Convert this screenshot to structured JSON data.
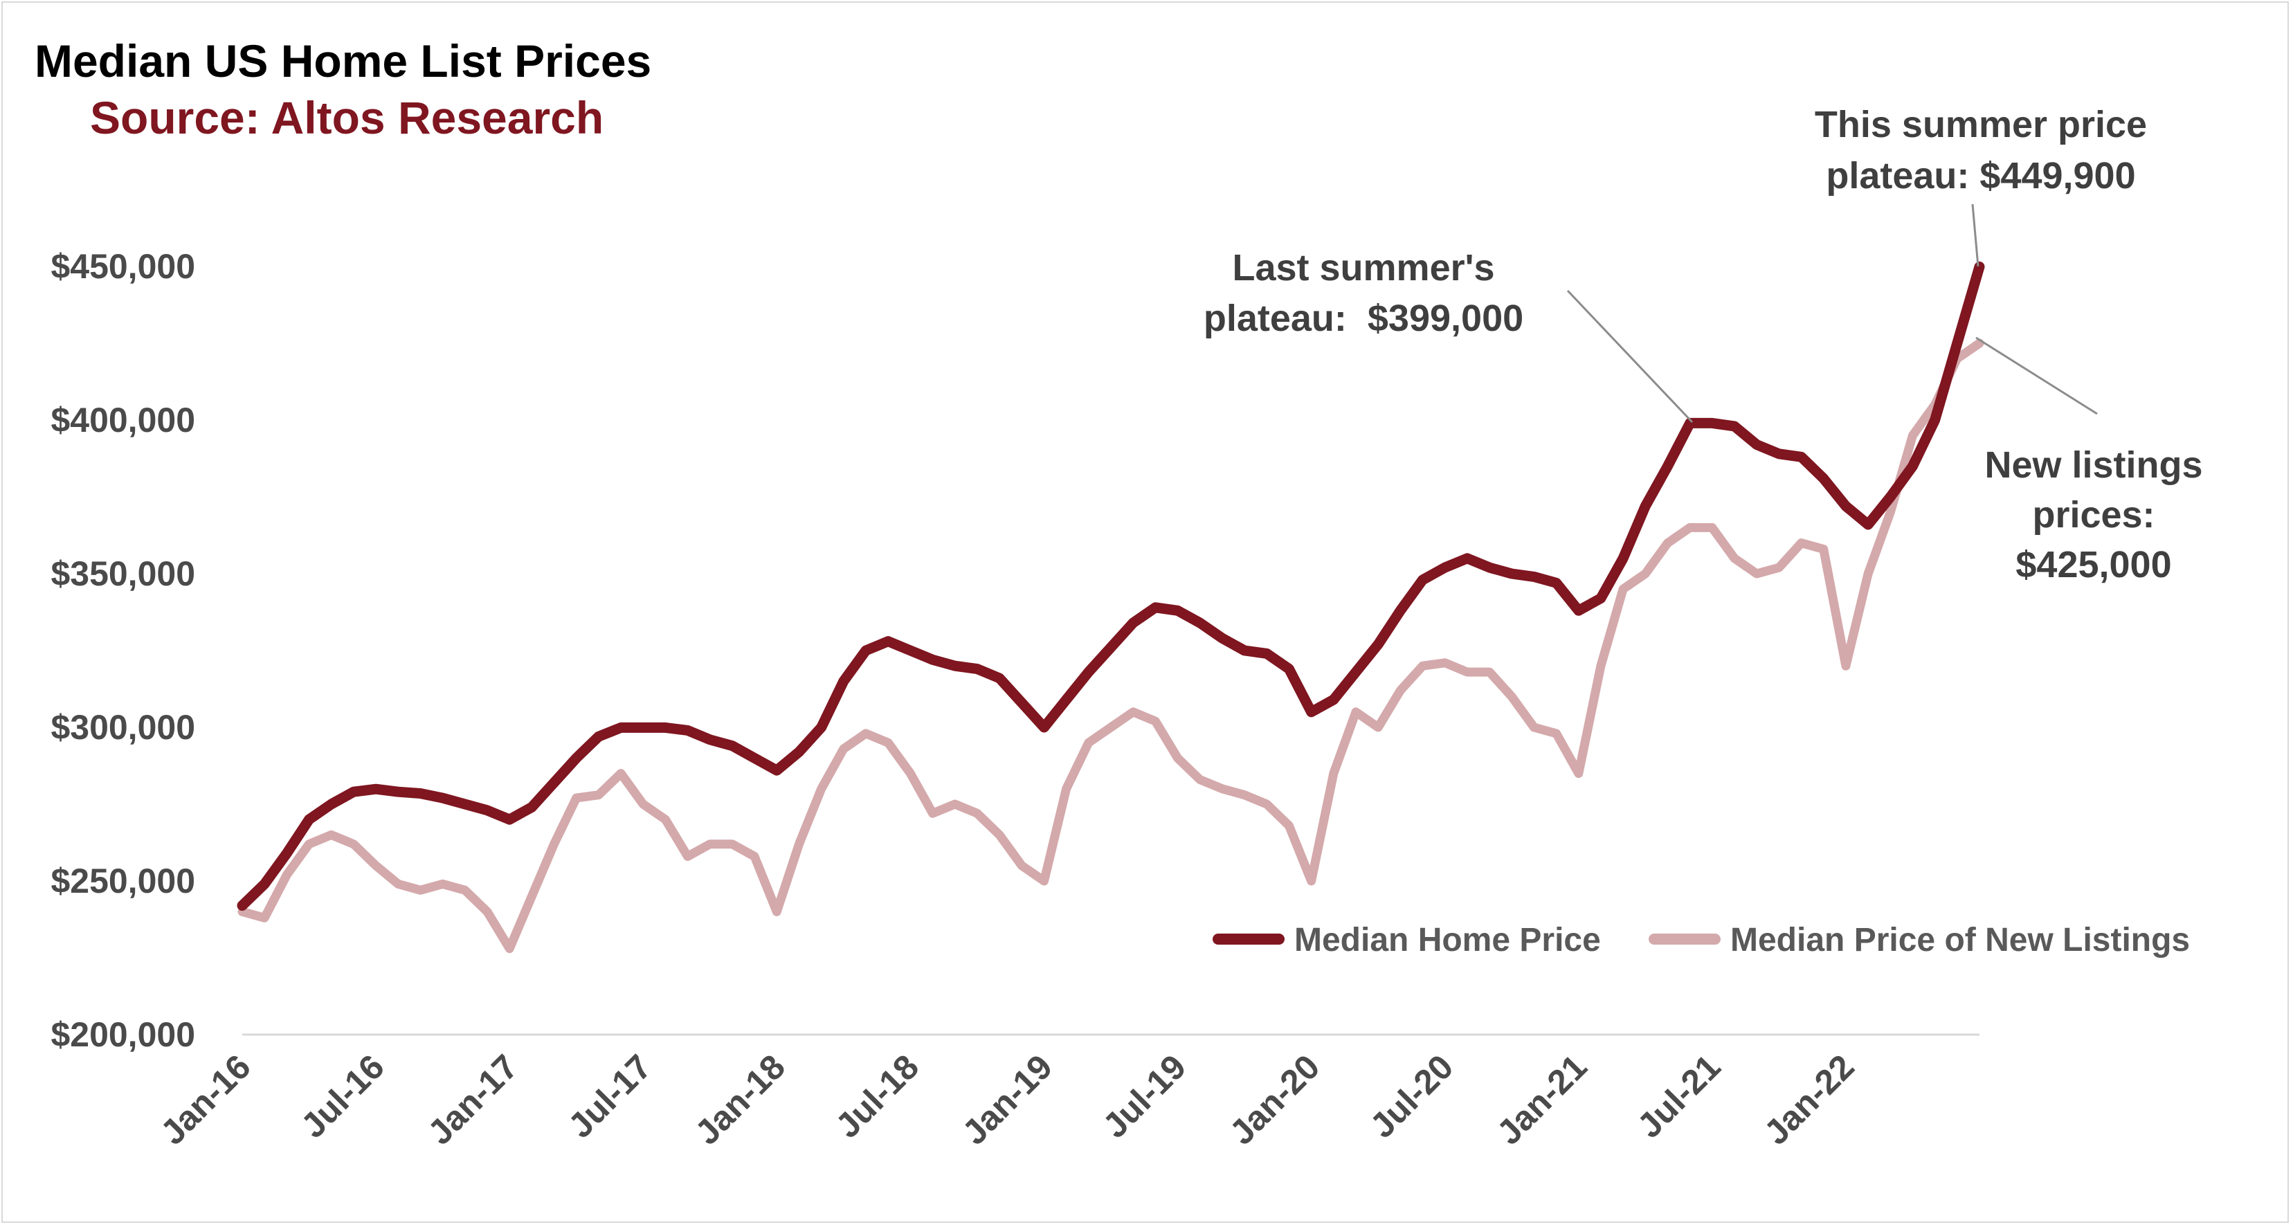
{
  "title": "Median US Home List Prices",
  "subtitle": "Source: Altos Research",
  "colors": {
    "title": "#000000",
    "subtitle": "#7f1620",
    "median_home_price": "#7f1620",
    "new_listings": "#d4a9ab",
    "axis_text": "#4a4a4a",
    "annotation_text": "#3f3f3f",
    "leader_line": "#8c8c8c"
  },
  "annotations": {
    "this_summer": [
      "This summer price",
      "plateau: $449,900"
    ],
    "last_summer": [
      "Last summer's",
      "plateau:  $399,000"
    ],
    "new_listings": [
      "New listings",
      "prices:",
      "$425,000"
    ]
  },
  "chart_data": {
    "type": "line",
    "title": "Median US Home List Prices",
    "subtitle": "Source: Altos Research",
    "xlabel": "",
    "ylabel": "",
    "x_ticks": [
      "Jan-16",
      "Jul-16",
      "Jan-17",
      "Jul-17",
      "Jan-18",
      "Jul-18",
      "Jan-19",
      "Jul-19",
      "Jan-20",
      "Jul-20",
      "Jan-21",
      "Jul-21",
      "Jan-22"
    ],
    "y_ticks": [
      "$200,000",
      "$250,000",
      "$300,000",
      "$350,000",
      "$400,000",
      "$450,000"
    ],
    "ylim": [
      200000,
      450000
    ],
    "xlim": [
      "2016-01",
      "2022-07"
    ],
    "grid": false,
    "legend_position": "bottom-right",
    "series": [
      {
        "name": "Median Home Price",
        "color": "#7f1620",
        "x": [
          "2016-01",
          "2016-02",
          "2016-03",
          "2016-04",
          "2016-05",
          "2016-06",
          "2016-07",
          "2016-08",
          "2016-09",
          "2016-10",
          "2016-11",
          "2016-12",
          "2017-01",
          "2017-02",
          "2017-03",
          "2017-04",
          "2017-05",
          "2017-06",
          "2017-07",
          "2017-08",
          "2017-09",
          "2017-10",
          "2017-11",
          "2017-12",
          "2018-01",
          "2018-02",
          "2018-03",
          "2018-04",
          "2018-05",
          "2018-06",
          "2018-07",
          "2018-08",
          "2018-09",
          "2018-10",
          "2018-11",
          "2018-12",
          "2019-01",
          "2019-02",
          "2019-03",
          "2019-04",
          "2019-05",
          "2019-06",
          "2019-07",
          "2019-08",
          "2019-09",
          "2019-10",
          "2019-11",
          "2019-12",
          "2020-01",
          "2020-02",
          "2020-03",
          "2020-04",
          "2020-05",
          "2020-06",
          "2020-07",
          "2020-08",
          "2020-09",
          "2020-10",
          "2020-11",
          "2020-12",
          "2021-01",
          "2021-02",
          "2021-03",
          "2021-04",
          "2021-05",
          "2021-06",
          "2021-07",
          "2021-08",
          "2021-09",
          "2021-10",
          "2021-11",
          "2021-12",
          "2022-01",
          "2022-02",
          "2022-03",
          "2022-04",
          "2022-05",
          "2022-06",
          "2022-07"
        ],
        "values": [
          242000,
          249000,
          259000,
          270000,
          275000,
          279000,
          279900,
          279000,
          278500,
          277000,
          275000,
          273000,
          270000,
          274000,
          282000,
          290000,
          297000,
          299900,
          299900,
          299900,
          299000,
          296000,
          294000,
          290000,
          286000,
          292000,
          300000,
          315000,
          325000,
          328000,
          325000,
          322000,
          320000,
          319000,
          316000,
          308000,
          300000,
          309000,
          318000,
          326000,
          334000,
          339000,
          338000,
          334000,
          329000,
          325000,
          324000,
          319000,
          305000,
          309000,
          318000,
          327000,
          338000,
          348000,
          352000,
          355000,
          352000,
          350000,
          349000,
          347000,
          338000,
          342000,
          355000,
          372000,
          385000,
          399000,
          399000,
          398000,
          392000,
          389000,
          388000,
          381000,
          372000,
          366000,
          375000,
          385000,
          400000,
          425000,
          449900
        ]
      },
      {
        "name": "Median Price of New Listings",
        "color": "#d4a9ab",
        "x": [
          "2016-01",
          "2016-02",
          "2016-03",
          "2016-04",
          "2016-05",
          "2016-06",
          "2016-07",
          "2016-08",
          "2016-09",
          "2016-10",
          "2016-11",
          "2016-12",
          "2017-01",
          "2017-02",
          "2017-03",
          "2017-04",
          "2017-05",
          "2017-06",
          "2017-07",
          "2017-08",
          "2017-09",
          "2017-10",
          "2017-11",
          "2017-12",
          "2018-01",
          "2018-02",
          "2018-03",
          "2018-04",
          "2018-05",
          "2018-06",
          "2018-07",
          "2018-08",
          "2018-09",
          "2018-10",
          "2018-11",
          "2018-12",
          "2019-01",
          "2019-02",
          "2019-03",
          "2019-04",
          "2019-05",
          "2019-06",
          "2019-07",
          "2019-08",
          "2019-09",
          "2019-10",
          "2019-11",
          "2019-12",
          "2020-01",
          "2020-02",
          "2020-03",
          "2020-04",
          "2020-05",
          "2020-06",
          "2020-07",
          "2020-08",
          "2020-09",
          "2020-10",
          "2020-11",
          "2020-12",
          "2021-01",
          "2021-02",
          "2021-03",
          "2021-04",
          "2021-05",
          "2021-06",
          "2021-07",
          "2021-08",
          "2021-09",
          "2021-10",
          "2021-11",
          "2021-12",
          "2022-01",
          "2022-02",
          "2022-03",
          "2022-04",
          "2022-05",
          "2022-06",
          "2022-07"
        ],
        "values": [
          240000,
          238000,
          252000,
          262000,
          265000,
          262000,
          255000,
          249000,
          247000,
          249000,
          247000,
          240000,
          228000,
          245000,
          262000,
          277000,
          278000,
          285000,
          275000,
          270000,
          258000,
          262000,
          262000,
          258000,
          240000,
          262000,
          280000,
          293000,
          298000,
          295000,
          285000,
          272000,
          275000,
          272000,
          265000,
          255000,
          250000,
          280000,
          295000,
          300000,
          305000,
          302000,
          290000,
          283000,
          280000,
          278000,
          275000,
          268000,
          250000,
          285000,
          305000,
          300000,
          312000,
          320000,
          321000,
          318000,
          318000,
          310000,
          300000,
          298000,
          285000,
          320000,
          345000,
          350000,
          360000,
          365000,
          365000,
          355000,
          350000,
          352000,
          360000,
          358000,
          320000,
          350000,
          370000,
          395000,
          405000,
          420000,
          425000
        ]
      }
    ]
  }
}
